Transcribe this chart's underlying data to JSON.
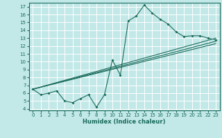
{
  "xlabel": "Humidex (Indice chaleur)",
  "bg_color": "#c2e8e8",
  "line_color": "#1a6b5a",
  "grid_color": "#ffffff",
  "xlim": [
    -0.5,
    23.5
  ],
  "ylim": [
    3.8,
    17.5
  ],
  "line1_x": [
    0,
    1,
    2,
    3,
    4,
    5,
    6,
    7,
    8,
    9,
    10,
    11,
    12,
    13,
    14,
    15,
    16,
    17,
    18,
    19,
    20,
    21,
    22,
    23
  ],
  "line1_y": [
    6.5,
    5.8,
    6.0,
    6.3,
    5.0,
    4.8,
    5.3,
    5.8,
    4.2,
    5.8,
    10.2,
    8.3,
    15.2,
    15.8,
    17.2,
    16.2,
    15.4,
    14.8,
    13.8,
    13.2,
    13.3,
    13.3,
    13.0,
    12.8
  ],
  "line2_x": [
    0,
    23
  ],
  "line2_y": [
    6.5,
    13.0
  ],
  "line3_x": [
    0,
    23
  ],
  "line3_y": [
    6.5,
    12.3
  ],
  "line4_x": [
    0,
    23
  ],
  "line4_y": [
    6.5,
    12.6
  ]
}
